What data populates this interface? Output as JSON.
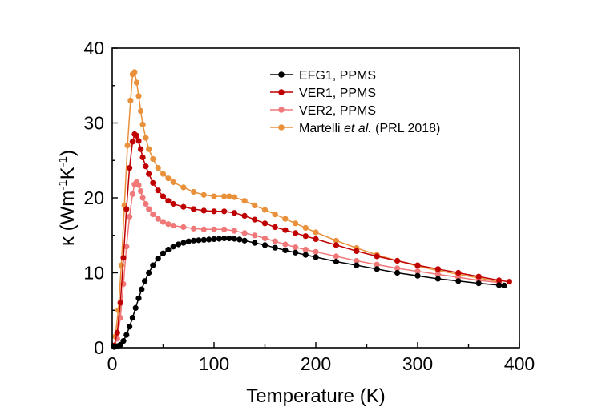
{
  "chart_data": {
    "type": "line",
    "xlabel": "Temperature (K)",
    "ylabel": {
      "prefix": "κ (Wm",
      "sup1": "-1",
      "mid": "K",
      "sup2": "-1",
      "suffix": ")"
    },
    "xlim": [
      0,
      400
    ],
    "ylim": [
      0,
      40
    ],
    "xticks": [
      0,
      100,
      200,
      300,
      400
    ],
    "yticks": [
      0,
      10,
      20,
      30,
      40
    ],
    "xtick_labels": [
      "0",
      "100",
      "200",
      "300",
      "400"
    ],
    "ytick_labels": [
      "0",
      "10",
      "20",
      "30",
      "40"
    ],
    "grid": false,
    "legend_position": "top-right",
    "series": [
      {
        "name": "EFG1, PPMS",
        "color": "#000000",
        "x": [
          2,
          5,
          8,
          11,
          14,
          17,
          20,
          23,
          26,
          29,
          32,
          36,
          40,
          45,
          50,
          55,
          60,
          65,
          70,
          75,
          80,
          85,
          90,
          95,
          100,
          105,
          110,
          115,
          120,
          125,
          130,
          140,
          150,
          160,
          170,
          180,
          190,
          200,
          220,
          240,
          260,
          280,
          300,
          320,
          340,
          360,
          380,
          385
        ],
        "y": [
          0.1,
          0.2,
          0.4,
          0.9,
          1.7,
          2.8,
          4.0,
          5.3,
          6.6,
          7.8,
          8.9,
          10.0,
          11.0,
          11.9,
          12.6,
          13.1,
          13.5,
          13.8,
          14.0,
          14.2,
          14.3,
          14.35,
          14.4,
          14.45,
          14.5,
          14.55,
          14.6,
          14.6,
          14.55,
          14.45,
          14.3,
          14.0,
          13.7,
          13.35,
          13.0,
          12.7,
          12.4,
          12.1,
          11.5,
          11.0,
          10.5,
          10.0,
          9.6,
          9.2,
          8.9,
          8.6,
          8.35,
          8.3
        ]
      },
      {
        "name": "VER1, PPMS",
        "color": "#c00000",
        "x": [
          2,
          5,
          8,
          11,
          14,
          17,
          20,
          22,
          24,
          26,
          28,
          30,
          33,
          36,
          40,
          45,
          50,
          55,
          60,
          70,
          80,
          90,
          100,
          110,
          120,
          130,
          140,
          150,
          160,
          170,
          180,
          190,
          200,
          220,
          240,
          260,
          280,
          300,
          320,
          340,
          360,
          380,
          390
        ],
        "y": [
          0.3,
          2.0,
          6.0,
          12.0,
          18.5,
          24.0,
          27.5,
          28.5,
          28.3,
          27.6,
          26.5,
          25.4,
          24.2,
          23.2,
          22.0,
          21.0,
          20.2,
          19.6,
          19.2,
          18.8,
          18.5,
          18.3,
          18.2,
          18.2,
          18.0,
          17.6,
          17.1,
          16.6,
          16.1,
          15.7,
          15.3,
          14.9,
          14.5,
          13.7,
          12.9,
          12.2,
          11.6,
          11.0,
          10.5,
          10.0,
          9.5,
          9.0,
          8.8
        ]
      },
      {
        "name": "VER2, PPMS",
        "color": "#f07878",
        "x": [
          2,
          5,
          8,
          11,
          14,
          17,
          20,
          22,
          24,
          26,
          28,
          30,
          33,
          36,
          40,
          45,
          50,
          55,
          60,
          70,
          80,
          90,
          100,
          110,
          120,
          130,
          140,
          150,
          160,
          170,
          180,
          190,
          200,
          220,
          240,
          260,
          280,
          300,
          320,
          340,
          360,
          380
        ],
        "y": [
          0.2,
          1.2,
          4.0,
          8.5,
          13.5,
          17.5,
          20.5,
          21.8,
          22.1,
          21.7,
          20.9,
          20.0,
          19.2,
          18.5,
          17.8,
          17.2,
          16.8,
          16.5,
          16.3,
          16.1,
          15.9,
          15.8,
          15.8,
          15.8,
          15.6,
          15.3,
          15.0,
          14.6,
          14.2,
          13.8,
          13.4,
          13.1,
          12.8,
          12.2,
          11.6,
          11.1,
          10.6,
          10.2,
          9.8,
          9.4,
          9.0,
          8.7
        ]
      },
      {
        "name": "Martelli et al. (PRL 2018)",
        "name_parts": [
          "Martelli ",
          "et al.",
          " (PRL 2018)"
        ],
        "color": "#e8903a",
        "x": [
          3,
          6,
          9,
          12,
          15,
          18,
          20,
          22,
          24,
          26,
          28,
          30,
          33,
          36,
          40,
          45,
          50,
          55,
          60,
          70,
          80,
          90,
          100,
          110,
          115,
          120,
          130,
          140,
          150,
          160,
          170,
          180,
          190,
          200,
          220,
          240,
          260,
          280,
          300,
          320,
          340,
          360,
          380
        ],
        "y": [
          1.5,
          5.0,
          11.0,
          19.0,
          27.0,
          33.0,
          36.5,
          36.8,
          35.4,
          33.6,
          31.6,
          29.8,
          28.0,
          26.5,
          25.2,
          24.0,
          23.2,
          22.6,
          22.1,
          21.4,
          20.8,
          20.4,
          20.2,
          20.2,
          20.2,
          20.1,
          19.6,
          19.0,
          18.4,
          17.8,
          17.2,
          16.6,
          16.0,
          15.4,
          14.3,
          13.3,
          12.4,
          11.6,
          10.9,
          10.3,
          9.8,
          9.3,
          8.8
        ]
      }
    ]
  }
}
